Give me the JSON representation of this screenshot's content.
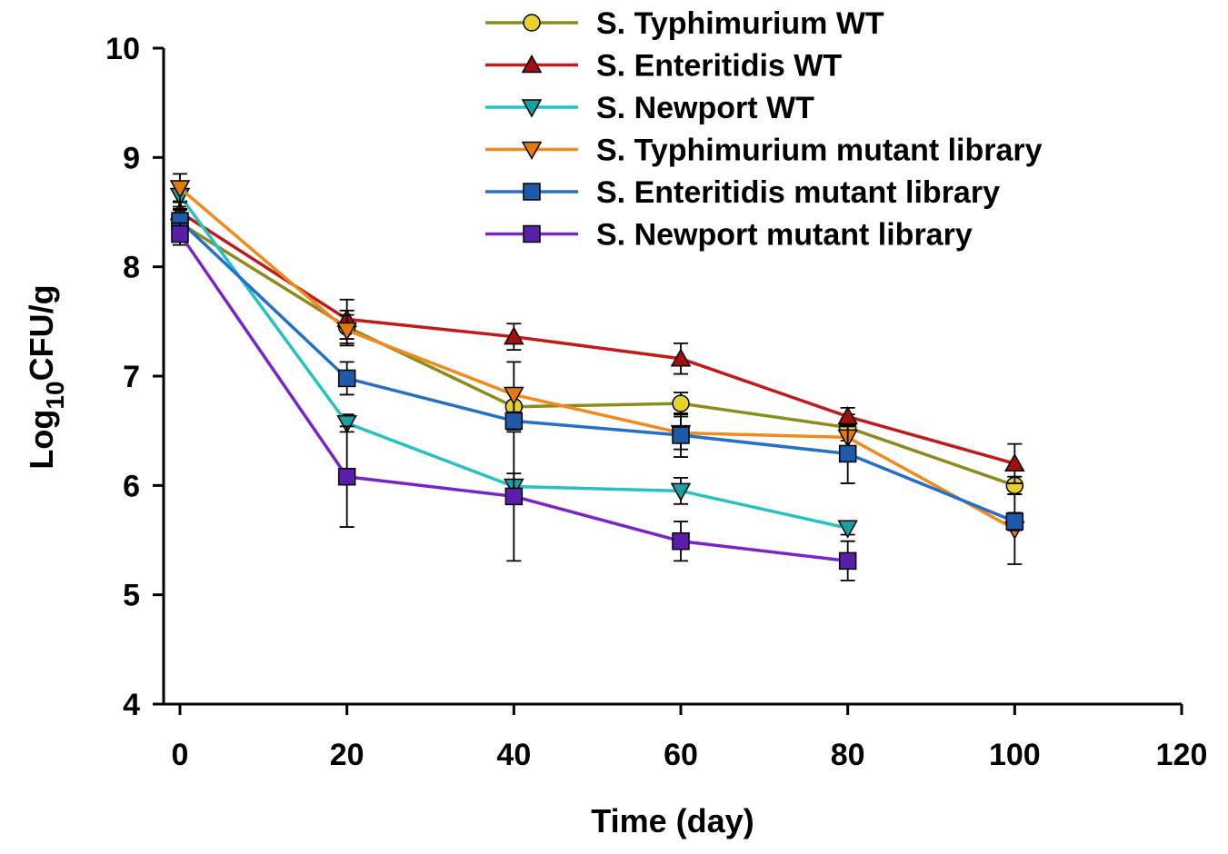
{
  "chart_data": {
    "type": "line",
    "title": "",
    "xlabel": "Time (day)",
    "ylabel_main": "Log",
    "ylabel_sub": "10",
    "ylabel_rest": "CFU/g",
    "xlim": [
      0,
      120
    ],
    "ylim": [
      4,
      10
    ],
    "xticks": [
      0,
      20,
      40,
      60,
      80,
      100,
      120
    ],
    "yticks": [
      4,
      5,
      6,
      7,
      8,
      9,
      10
    ],
    "grid": false,
    "legend_position": "top-right",
    "series": [
      {
        "name": "S. Typhimurium WT",
        "color": "#8c8c1e",
        "fill": "#e6d22a",
        "marker": "circle",
        "x": [
          0,
          20,
          40,
          60,
          80,
          100
        ],
        "y": [
          8.4,
          7.45,
          6.72,
          6.75,
          6.53,
          6.0
        ],
        "err": [
          0.15,
          0.15,
          0.15,
          0.1,
          0.12,
          0.08
        ]
      },
      {
        "name": "S. Enteritidis WT",
        "color": "#c01a1a",
        "fill": "#a01010",
        "marker": "triangle-up",
        "x": [
          0,
          20,
          40,
          60,
          80,
          100
        ],
        "y": [
          8.5,
          7.52,
          7.36,
          7.16,
          6.63,
          6.2
        ],
        "err": [
          0.1,
          0.18,
          0.12,
          0.14,
          0.08,
          0.18
        ]
      },
      {
        "name": "S. Newport WT",
        "color": "#26c2c2",
        "fill": "#1aa0a0",
        "marker": "triangle-down",
        "x": [
          0,
          20,
          40,
          60,
          80
        ],
        "y": [
          8.65,
          6.57,
          5.99,
          5.95,
          5.61
        ],
        "err": [
          0.12,
          0.08,
          0.12,
          0.12,
          0.06
        ]
      },
      {
        "name": "S. Typhimurium mutant library",
        "color": "#f08a1c",
        "fill": "#e27a10",
        "marker": "triangle-down",
        "x": [
          0,
          20,
          40,
          60,
          80,
          100
        ],
        "y": [
          8.72,
          7.42,
          6.83,
          6.48,
          6.44,
          5.6
        ],
        "err": [
          0.13,
          0.14,
          0.3,
          0.15,
          0.1,
          0.32
        ]
      },
      {
        "name": "S. Enteritidis mutant library",
        "color": "#2470c8",
        "fill": "#1f5aa8",
        "marker": "square",
        "x": [
          0,
          20,
          40,
          60,
          80,
          100
        ],
        "y": [
          8.42,
          6.98,
          6.59,
          6.46,
          6.29,
          5.67
        ],
        "err": [
          0.1,
          0.15,
          0.08,
          0.2,
          0.27,
          0.08
        ]
      },
      {
        "name": "S. Newport mutant library",
        "color": "#7a24c8",
        "fill": "#5a1ea8",
        "marker": "square",
        "x": [
          0,
          20,
          40,
          60,
          80
        ],
        "y": [
          8.3,
          6.08,
          5.9,
          5.49,
          5.31
        ],
        "err": [
          0.1,
          0.46,
          0.59,
          0.18,
          0.18
        ]
      }
    ]
  }
}
